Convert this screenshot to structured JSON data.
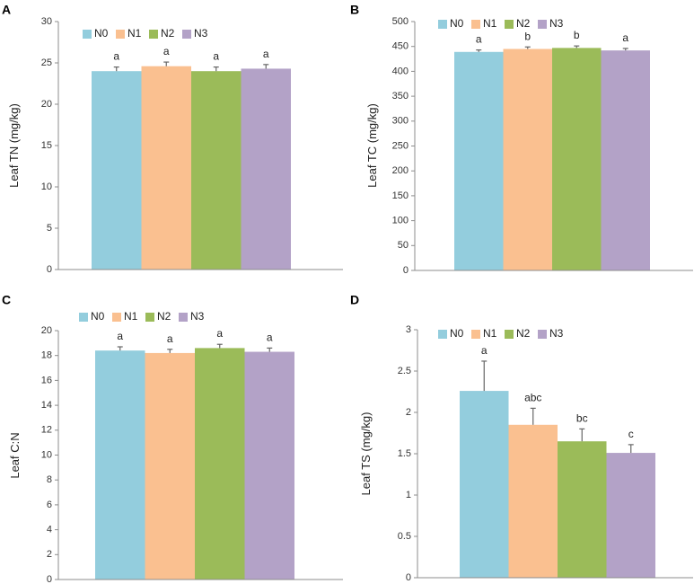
{
  "chart_data": [
    {
      "panel": "A",
      "type": "bar",
      "ylabel": "Leaf TN (mg/kg)",
      "ylim": [
        0,
        30
      ],
      "yticks": [
        0,
        5,
        10,
        15,
        20,
        25,
        30
      ],
      "categories": [
        "N0",
        "N1",
        "N2",
        "N3"
      ],
      "values": [
        24.0,
        24.6,
        24.0,
        24.3
      ],
      "errors": [
        0.5,
        0.5,
        0.5,
        0.5
      ],
      "letters": [
        "a",
        "a",
        "a",
        "a"
      ],
      "legend": "top-left"
    },
    {
      "panel": "B",
      "type": "bar",
      "ylabel": "Leaf TC (mg/kg)",
      "ylim": [
        0,
        500
      ],
      "yticks": [
        0,
        50,
        100,
        150,
        200,
        250,
        300,
        350,
        400,
        450,
        500
      ],
      "categories": [
        "N0",
        "N1",
        "N2",
        "N3"
      ],
      "values": [
        439,
        445,
        447,
        442
      ],
      "errors": [
        4,
        4,
        4,
        4
      ],
      "letters": [
        "a",
        "b",
        "b",
        "a"
      ],
      "legend": "top-left"
    },
    {
      "panel": "C",
      "type": "bar",
      "ylabel": "Leaf C:N",
      "ylim": [
        0,
        20
      ],
      "yticks": [
        0,
        2,
        4,
        6,
        8,
        10,
        12,
        14,
        16,
        18,
        20
      ],
      "categories": [
        "N0",
        "N1",
        "N2",
        "N3"
      ],
      "values": [
        18.4,
        18.2,
        18.6,
        18.3
      ],
      "errors": [
        0.3,
        0.3,
        0.3,
        0.3
      ],
      "letters": [
        "a",
        "a",
        "a",
        "a"
      ],
      "legend": "top-left"
    },
    {
      "panel": "D",
      "type": "bar",
      "ylabel": "Leaf TS (mg/kg)",
      "ylim": [
        0,
        3
      ],
      "yticks": [
        "0",
        "0.5",
        "1",
        "1.5",
        "2",
        "2.5",
        "3"
      ],
      "categories": [
        "N0",
        "N1",
        "N2",
        "N3"
      ],
      "values": [
        2.26,
        1.85,
        1.65,
        1.51
      ],
      "errors": [
        0.36,
        0.2,
        0.15,
        0.1
      ],
      "letters": [
        "a",
        "abc",
        "bc",
        "c"
      ],
      "legend": "top-left"
    }
  ],
  "colors": {
    "N0": "#93cddd",
    "N1": "#fac090",
    "N2": "#9bbb59",
    "N3": "#b3a2c7",
    "axis": "#8c8c8c",
    "error_bar": "#666666"
  }
}
